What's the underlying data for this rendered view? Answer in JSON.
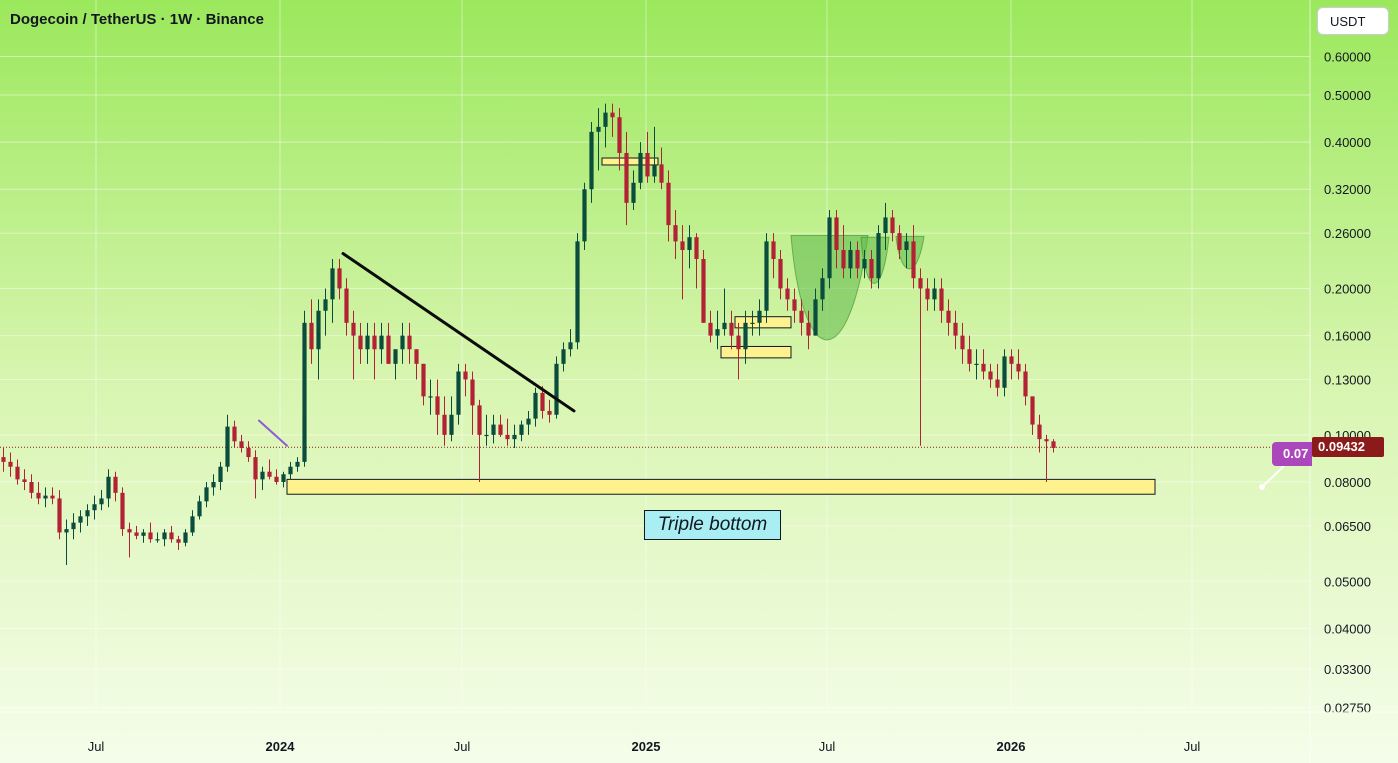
{
  "header": {
    "title": "Dogecoin / TetherUS · 1W · Binance",
    "currency_button": "USDT"
  },
  "annotation": {
    "text": "Triple bottom"
  },
  "price_label": {
    "value": "0.09432"
  },
  "drawing_tag": {
    "value": "0.07"
  },
  "colors": {
    "bull": "#0a4d3c",
    "bear": "#b22234",
    "zone_fill": "#fdf28d",
    "pattern_fill": "#5fb84a",
    "current_price": "#8b1a1a",
    "annotation_bg": "#a8eef3",
    "drawing_tag": "#ab47bc"
  },
  "chart_data": {
    "type": "candlestick",
    "title": "Dogecoin / TetherUS · 1W · Binance",
    "xlabel": "",
    "ylabel": "",
    "scale": "log",
    "ylim": [
      0.025,
      0.68
    ],
    "xlim": [
      "2023-03-13",
      "2026-12-14"
    ],
    "y_ticks": [
      "0.60000",
      "0.50000",
      "0.40000",
      "0.32000",
      "0.26000",
      "0.20000",
      "0.16000",
      "0.13000",
      "0.10000",
      "0.08000",
      "0.06500",
      "0.05000",
      "0.04000",
      "0.03300",
      "0.02750"
    ],
    "x_ticks": [
      {
        "date": "2023-07-01",
        "label": "Jul"
      },
      {
        "date": "2024-01-01",
        "label": "2024"
      },
      {
        "date": "2024-07-01",
        "label": "Jul"
      },
      {
        "date": "2025-01-01",
        "label": "2025"
      },
      {
        "date": "2025-07-01",
        "label": "Jul"
      },
      {
        "date": "2026-01-01",
        "label": "2026"
      },
      {
        "date": "2026-07-01",
        "label": "Jul"
      }
    ],
    "current_price": 0.09432,
    "candles": {
      "start": "2023-03-13",
      "interval_days": 7,
      "ohlc": [
        [
          0.084,
          0.1,
          0.079,
          0.082
        ],
        [
          0.082,
          0.092,
          0.078,
          0.09
        ],
        [
          0.09,
          0.094,
          0.084,
          0.088
        ],
        [
          0.088,
          0.092,
          0.082,
          0.086
        ],
        [
          0.086,
          0.089,
          0.079,
          0.081
        ],
        [
          0.081,
          0.085,
          0.077,
          0.08
        ],
        [
          0.08,
          0.083,
          0.074,
          0.076
        ],
        [
          0.076,
          0.08,
          0.072,
          0.074
        ],
        [
          0.074,
          0.078,
          0.071,
          0.075
        ],
        [
          0.075,
          0.078,
          0.072,
          0.074
        ],
        [
          0.074,
          0.077,
          0.061,
          0.063
        ],
        [
          0.063,
          0.067,
          0.054,
          0.064
        ],
        [
          0.064,
          0.069,
          0.061,
          0.066
        ],
        [
          0.066,
          0.07,
          0.063,
          0.068
        ],
        [
          0.068,
          0.072,
          0.065,
          0.07
        ],
        [
          0.07,
          0.075,
          0.067,
          0.072
        ],
        [
          0.072,
          0.077,
          0.07,
          0.074
        ],
        [
          0.074,
          0.085,
          0.071,
          0.082
        ],
        [
          0.082,
          0.084,
          0.073,
          0.076
        ],
        [
          0.076,
          0.078,
          0.062,
          0.064
        ],
        [
          0.064,
          0.066,
          0.056,
          0.063
        ],
        [
          0.063,
          0.065,
          0.061,
          0.062
        ],
        [
          0.062,
          0.064,
          0.06,
          0.063
        ],
        [
          0.063,
          0.066,
          0.06,
          0.061
        ],
        [
          0.061,
          0.063,
          0.06,
          0.061
        ],
        [
          0.061,
          0.064,
          0.059,
          0.063
        ],
        [
          0.063,
          0.065,
          0.06,
          0.061
        ],
        [
          0.061,
          0.062,
          0.058,
          0.06
        ],
        [
          0.06,
          0.064,
          0.059,
          0.063
        ],
        [
          0.063,
          0.07,
          0.062,
          0.068
        ],
        [
          0.068,
          0.075,
          0.067,
          0.073
        ],
        [
          0.073,
          0.08,
          0.071,
          0.078
        ],
        [
          0.078,
          0.083,
          0.075,
          0.08
        ],
        [
          0.08,
          0.088,
          0.077,
          0.086
        ],
        [
          0.086,
          0.11,
          0.084,
          0.104
        ],
        [
          0.104,
          0.107,
          0.094,
          0.097
        ],
        [
          0.097,
          0.1,
          0.092,
          0.094
        ],
        [
          0.094,
          0.097,
          0.088,
          0.09
        ],
        [
          0.09,
          0.093,
          0.074,
          0.081
        ],
        [
          0.081,
          0.086,
          0.077,
          0.084
        ],
        [
          0.084,
          0.089,
          0.081,
          0.082
        ],
        [
          0.082,
          0.085,
          0.079,
          0.08
        ],
        [
          0.08,
          0.084,
          0.078,
          0.083
        ],
        [
          0.083,
          0.088,
          0.081,
          0.086
        ],
        [
          0.086,
          0.09,
          0.084,
          0.088
        ],
        [
          0.088,
          0.18,
          0.086,
          0.17
        ],
        [
          0.17,
          0.19,
          0.14,
          0.15
        ],
        [
          0.15,
          0.19,
          0.13,
          0.18
        ],
        [
          0.18,
          0.2,
          0.16,
          0.19
        ],
        [
          0.19,
          0.23,
          0.17,
          0.22
        ],
        [
          0.22,
          0.23,
          0.19,
          0.2
        ],
        [
          0.2,
          0.21,
          0.16,
          0.17
        ],
        [
          0.17,
          0.18,
          0.13,
          0.16
        ],
        [
          0.16,
          0.17,
          0.14,
          0.15
        ],
        [
          0.15,
          0.17,
          0.14,
          0.16
        ],
        [
          0.16,
          0.17,
          0.13,
          0.15
        ],
        [
          0.15,
          0.17,
          0.14,
          0.16
        ],
        [
          0.16,
          0.17,
          0.14,
          0.14
        ],
        [
          0.14,
          0.15,
          0.13,
          0.15
        ],
        [
          0.15,
          0.17,
          0.14,
          0.16
        ],
        [
          0.16,
          0.17,
          0.14,
          0.15
        ],
        [
          0.15,
          0.15,
          0.13,
          0.14
        ],
        [
          0.14,
          0.14,
          0.115,
          0.12
        ],
        [
          0.12,
          0.13,
          0.11,
          0.12
        ],
        [
          0.12,
          0.13,
          0.1,
          0.11
        ],
        [
          0.11,
          0.12,
          0.095,
          0.1
        ],
        [
          0.1,
          0.12,
          0.097,
          0.11
        ],
        [
          0.11,
          0.14,
          0.105,
          0.135
        ],
        [
          0.135,
          0.14,
          0.12,
          0.13
        ],
        [
          0.13,
          0.135,
          0.1,
          0.115
        ],
        [
          0.115,
          0.118,
          0.08,
          0.1
        ],
        [
          0.1,
          0.11,
          0.095,
          0.1
        ],
        [
          0.1,
          0.11,
          0.096,
          0.105
        ],
        [
          0.105,
          0.11,
          0.099,
          0.1
        ],
        [
          0.1,
          0.108,
          0.095,
          0.098
        ],
        [
          0.098,
          0.105,
          0.094,
          0.1
        ],
        [
          0.1,
          0.107,
          0.097,
          0.105
        ],
        [
          0.105,
          0.112,
          0.1,
          0.108
        ],
        [
          0.108,
          0.125,
          0.104,
          0.122
        ],
        [
          0.122,
          0.126,
          0.108,
          0.112
        ],
        [
          0.112,
          0.118,
          0.106,
          0.11
        ],
        [
          0.11,
          0.145,
          0.108,
          0.14
        ],
        [
          0.14,
          0.155,
          0.135,
          0.15
        ],
        [
          0.15,
          0.165,
          0.145,
          0.155
        ],
        [
          0.155,
          0.26,
          0.15,
          0.25
        ],
        [
          0.25,
          0.33,
          0.24,
          0.32
        ],
        [
          0.32,
          0.44,
          0.3,
          0.42
        ],
        [
          0.42,
          0.47,
          0.35,
          0.43
        ],
        [
          0.43,
          0.48,
          0.39,
          0.46
        ],
        [
          0.46,
          0.48,
          0.41,
          0.45
        ],
        [
          0.45,
          0.47,
          0.35,
          0.38
        ],
        [
          0.38,
          0.42,
          0.27,
          0.3
        ],
        [
          0.3,
          0.35,
          0.29,
          0.33
        ],
        [
          0.33,
          0.4,
          0.32,
          0.38
        ],
        [
          0.38,
          0.42,
          0.33,
          0.34
        ],
        [
          0.34,
          0.43,
          0.33,
          0.36
        ],
        [
          0.36,
          0.39,
          0.32,
          0.33
        ],
        [
          0.33,
          0.35,
          0.25,
          0.27
        ],
        [
          0.27,
          0.29,
          0.23,
          0.25
        ],
        [
          0.25,
          0.27,
          0.19,
          0.24
        ],
        [
          0.24,
          0.27,
          0.22,
          0.255
        ],
        [
          0.255,
          0.26,
          0.2,
          0.23
        ],
        [
          0.23,
          0.24,
          0.17,
          0.17
        ],
        [
          0.17,
          0.18,
          0.155,
          0.16
        ],
        [
          0.16,
          0.18,
          0.15,
          0.165
        ],
        [
          0.165,
          0.2,
          0.16,
          0.17
        ],
        [
          0.17,
          0.18,
          0.15,
          0.16
        ],
        [
          0.16,
          0.17,
          0.13,
          0.15
        ],
        [
          0.15,
          0.18,
          0.14,
          0.17
        ],
        [
          0.17,
          0.18,
          0.16,
          0.17
        ],
        [
          0.17,
          0.19,
          0.16,
          0.18
        ],
        [
          0.18,
          0.26,
          0.17,
          0.25
        ],
        [
          0.25,
          0.26,
          0.21,
          0.23
        ],
        [
          0.23,
          0.24,
          0.19,
          0.2
        ],
        [
          0.2,
          0.21,
          0.18,
          0.19
        ],
        [
          0.19,
          0.2,
          0.17,
          0.18
        ],
        [
          0.18,
          0.19,
          0.16,
          0.17
        ],
        [
          0.17,
          0.18,
          0.15,
          0.16
        ],
        [
          0.16,
          0.2,
          0.16,
          0.19
        ],
        [
          0.19,
          0.22,
          0.18,
          0.21
        ],
        [
          0.21,
          0.29,
          0.2,
          0.28
        ],
        [
          0.28,
          0.29,
          0.22,
          0.24
        ],
        [
          0.24,
          0.27,
          0.21,
          0.22
        ],
        [
          0.22,
          0.25,
          0.21,
          0.24
        ],
        [
          0.24,
          0.25,
          0.21,
          0.22
        ],
        [
          0.22,
          0.24,
          0.21,
          0.23
        ],
        [
          0.23,
          0.24,
          0.2,
          0.21
        ],
        [
          0.21,
          0.27,
          0.2,
          0.26
        ],
        [
          0.26,
          0.3,
          0.24,
          0.28
        ],
        [
          0.28,
          0.29,
          0.25,
          0.26
        ],
        [
          0.26,
          0.27,
          0.23,
          0.24
        ],
        [
          0.24,
          0.26,
          0.22,
          0.25
        ],
        [
          0.25,
          0.27,
          0.2,
          0.21
        ],
        [
          0.21,
          0.22,
          0.095,
          0.2
        ],
        [
          0.2,
          0.21,
          0.18,
          0.19
        ],
        [
          0.19,
          0.21,
          0.18,
          0.2
        ],
        [
          0.2,
          0.21,
          0.17,
          0.18
        ],
        [
          0.18,
          0.19,
          0.16,
          0.17
        ],
        [
          0.17,
          0.18,
          0.15,
          0.16
        ],
        [
          0.16,
          0.17,
          0.14,
          0.15
        ],
        [
          0.15,
          0.16,
          0.135,
          0.14
        ],
        [
          0.14,
          0.15,
          0.13,
          0.14
        ],
        [
          0.14,
          0.15,
          0.13,
          0.135
        ],
        [
          0.135,
          0.14,
          0.125,
          0.13
        ],
        [
          0.13,
          0.14,
          0.12,
          0.125
        ],
        [
          0.125,
          0.15,
          0.12,
          0.145
        ],
        [
          0.145,
          0.15,
          0.13,
          0.14
        ],
        [
          0.14,
          0.15,
          0.13,
          0.135
        ],
        [
          0.135,
          0.14,
          0.115,
          0.12
        ],
        [
          0.12,
          0.12,
          0.1,
          0.105
        ],
        [
          0.105,
          0.11,
          0.092,
          0.098
        ],
        [
          0.098,
          0.1,
          0.08,
          0.097
        ],
        [
          0.097,
          0.098,
          0.092,
          0.094
        ]
      ]
    },
    "annotations": [
      {
        "type": "zone",
        "name": "support-zone",
        "x0": "2024-01-08",
        "x1": "2026-05-25",
        "y0": 0.0755,
        "y1": 0.081
      },
      {
        "type": "zone",
        "name": "resistance-zone-top",
        "x0": "2024-11-18",
        "x1": "2025-01-13",
        "y0": 0.359,
        "y1": 0.371
      },
      {
        "type": "zone",
        "name": "zone-mid-upper",
        "x0": "2025-03-31",
        "x1": "2025-05-26",
        "y0": 0.166,
        "y1": 0.175
      },
      {
        "type": "zone",
        "name": "zone-mid-lower",
        "x0": "2025-03-17",
        "x1": "2025-05-26",
        "y0": 0.144,
        "y1": 0.152
      },
      {
        "type": "line",
        "name": "downtrend-line",
        "x0": "2024-03-04",
        "y0": 0.236,
        "x1": "2024-10-21",
        "y1": 0.112
      },
      {
        "type": "line",
        "name": "purple-trend-line",
        "x0": "2023-12-11",
        "y0": 0.107,
        "x1": "2024-01-08",
        "y1": 0.095
      }
    ]
  }
}
